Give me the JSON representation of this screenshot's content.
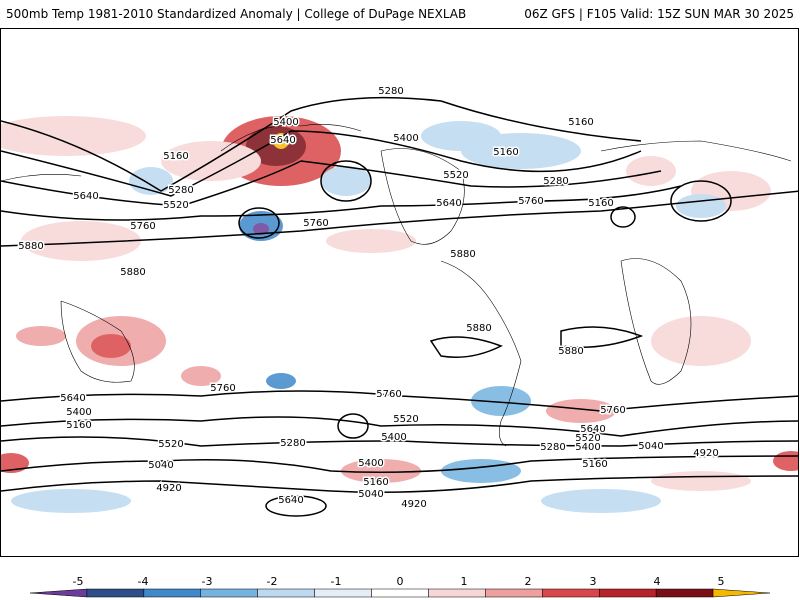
{
  "header": {
    "title_left": "500mb Temp 1981-2010 Standardized Anomaly | College of DuPage NEXLAB",
    "title_right": "06Z GFS | F105 Valid: 15Z SUN MAR 30 2025"
  },
  "map": {
    "contour_labels": [
      "5280",
      "5160",
      "5400",
      "5640",
      "5160",
      "5280",
      "5640",
      "5520",
      "5760",
      "5160",
      "5520",
      "5280",
      "5640",
      "5400",
      "5160",
      "5760",
      "5760",
      "5880",
      "5880",
      "5880",
      "5760",
      "5760",
      "5880",
      "5880",
      "5640",
      "5400",
      "5160",
      "5520",
      "5040",
      "4920",
      "5280",
      "5400",
      "5160",
      "5040",
      "4920",
      "5640",
      "5520",
      "5400",
      "5280",
      "5160",
      "5040",
      "4920",
      "5760",
      "5640",
      "5520",
      "5400"
    ]
  },
  "colorbar": {
    "labels": [
      "-5",
      "-4",
      "-3",
      "-2",
      "-1",
      "0",
      "1",
      "2",
      "3",
      "4",
      "5"
    ],
    "colors": [
      "#6a3d9a",
      "#2c4f8a",
      "#3f88c9",
      "#74b3e0",
      "#bcd9f0",
      "#e3eef8",
      "#ffffff",
      "#f7d6d6",
      "#ee9f9f",
      "#d9474a",
      "#b8232a",
      "#7a0f16",
      "#f5b800"
    ]
  }
}
